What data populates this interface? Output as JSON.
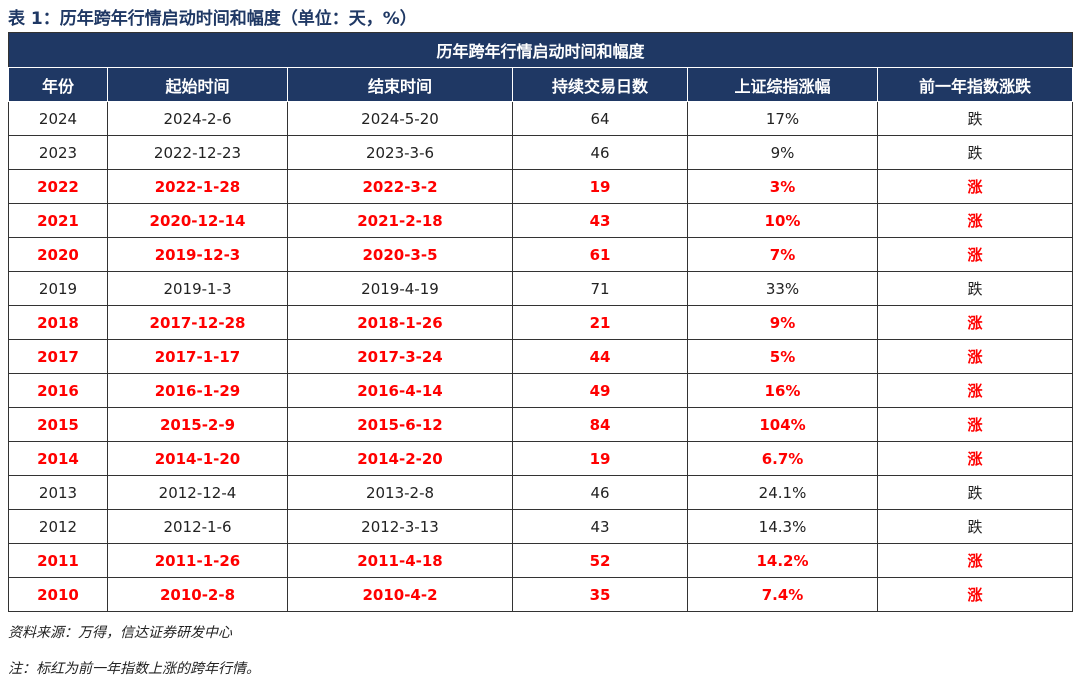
{
  "caption": "表 1：历年跨年行情启动时间和幅度（单位：天，%）",
  "table": {
    "title": "历年跨年行情启动时间和幅度",
    "header": [
      "年份",
      "起始时间",
      "结束时间",
      "持续交易日数",
      "上证综指涨幅",
      "前一年指数涨跌"
    ],
    "rows": [
      {
        "cells": [
          "2024",
          "2024-2-6",
          "2024-5-20",
          "64",
          "17%",
          "跌"
        ],
        "color": "#222222"
      },
      {
        "cells": [
          "2023",
          "2022-12-23",
          "2023-3-6",
          "46",
          "9%",
          "跌"
        ],
        "color": "#222222"
      },
      {
        "cells": [
          "2022",
          "2022-1-28",
          "2022-3-2",
          "19",
          "3%",
          "涨"
        ],
        "color": "#ff0000"
      },
      {
        "cells": [
          "2021",
          "2020-12-14",
          "2021-2-18",
          "43",
          "10%",
          "涨"
        ],
        "color": "#ff0000"
      },
      {
        "cells": [
          "2020",
          "2019-12-3",
          "2020-3-5",
          "61",
          "7%",
          "涨"
        ],
        "color": "#ff0000"
      },
      {
        "cells": [
          "2019",
          "2019-1-3",
          "2019-4-19",
          "71",
          "33%",
          "跌"
        ],
        "color": "#222222"
      },
      {
        "cells": [
          "2018",
          "2017-12-28",
          "2018-1-26",
          "21",
          "9%",
          "涨"
        ],
        "color": "#ff0000"
      },
      {
        "cells": [
          "2017",
          "2017-1-17",
          "2017-3-24",
          "44",
          "5%",
          "涨"
        ],
        "color": "#ff0000"
      },
      {
        "cells": [
          "2016",
          "2016-1-29",
          "2016-4-14",
          "49",
          "16%",
          "涨"
        ],
        "color": "#ff0000"
      },
      {
        "cells": [
          "2015",
          "2015-2-9",
          "2015-6-12",
          "84",
          "104%",
          "涨"
        ],
        "color": "#ff0000"
      },
      {
        "cells": [
          "2014",
          "2014-1-20",
          "2014-2-20",
          "19",
          "6.7%",
          "涨"
        ],
        "color": "#ff0000"
      },
      {
        "cells": [
          "2013",
          "2012-12-4",
          "2013-2-8",
          "46",
          "24.1%",
          "跌"
        ],
        "color": "#222222"
      },
      {
        "cells": [
          "2012",
          "2012-1-6",
          "2012-3-13",
          "43",
          "14.3%",
          "跌"
        ],
        "color": "#222222"
      },
      {
        "cells": [
          "2011",
          "2011-1-26",
          "2011-4-18",
          "52",
          "14.2%",
          "涨"
        ],
        "color": "#ff0000"
      },
      {
        "cells": [
          "2010",
          "2010-2-8",
          "2010-4-2",
          "35",
          "7.4%",
          "涨"
        ],
        "color": "#ff0000"
      }
    ]
  },
  "source": "资料来源：万得，信达证券研发中心",
  "note": "注：标红为前一年指数上涨的跨年行情。"
}
